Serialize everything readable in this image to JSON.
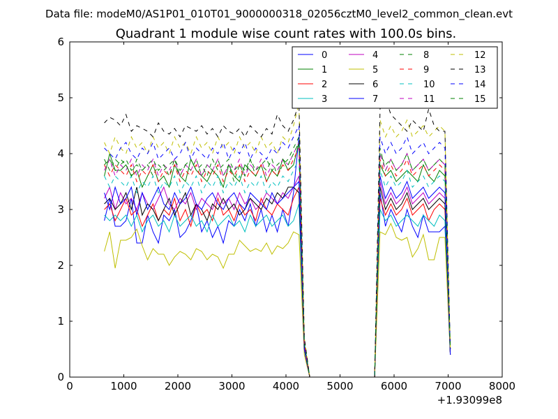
{
  "figure": {
    "suptitle": "Data file: modeM0/AS1P01_010T01_9000000318_02056cztM0_level2_common_clean.evt"
  },
  "chart_data": {
    "type": "line",
    "title": "Quadrant 1 module wise count rates with 100.0s bins.",
    "xlabel": "",
    "ylabel": "",
    "x_offset_label": "+1.93099e8",
    "xlim": [
      0,
      8000
    ],
    "ylim": [
      0,
      6
    ],
    "x_ticks": [
      0,
      1000,
      2000,
      3000,
      4000,
      5000,
      6000,
      7000,
      8000
    ],
    "y_ticks": [
      0,
      1,
      2,
      3,
      4,
      5,
      6
    ],
    "grid": false,
    "legend_position": "top-right",
    "legend_columns": 4,
    "x": [
      640,
      740,
      840,
      940,
      1040,
      1140,
      1240,
      1340,
      1440,
      1540,
      1640,
      1740,
      1840,
      1940,
      2040,
      2140,
      2240,
      2340,
      2440,
      2540,
      2640,
      2740,
      2840,
      2940,
      3040,
      3140,
      3240,
      3340,
      3440,
      3540,
      3640,
      3740,
      3840,
      3940,
      4040,
      4140,
      4240,
      4340,
      4440,
      4540,
      4640,
      4740,
      4840,
      4940,
      5040,
      5140,
      5240,
      5340,
      5440,
      5540,
      5640,
      5740,
      5840,
      5940,
      6040,
      6140,
      6240,
      6340,
      6440,
      6540,
      6640,
      6740,
      6840,
      6940,
      7040
    ],
    "series": [
      {
        "name": "0",
        "color": "#0000ff",
        "dash": "solid",
        "values": [
          2.8,
          3.2,
          2.7,
          2.7,
          2.8,
          3.2,
          2.4,
          2.4,
          2.9,
          2.6,
          2.4,
          2.9,
          2.8,
          3.0,
          2.5,
          2.6,
          2.8,
          3.1,
          2.6,
          2.8,
          2.5,
          2.7,
          2.4,
          2.8,
          2.7,
          3.0,
          2.8,
          3.1,
          2.7,
          3.0,
          2.6,
          2.9,
          2.6,
          3.0,
          2.7,
          3.3,
          4.3,
          0.6,
          0.0,
          0.0,
          0.0,
          0.0,
          0.0,
          0.0,
          0.0,
          0.0,
          0.0,
          0.0,
          0.0,
          0.0,
          0.0,
          3.3,
          2.7,
          3.0,
          2.8,
          2.6,
          3.0,
          2.7,
          2.5,
          2.9,
          2.6,
          2.6,
          2.6,
          2.7,
          0.4
        ]
      },
      {
        "name": "1",
        "color": "#008000",
        "dash": "solid",
        "values": [
          3.6,
          4.0,
          3.7,
          3.7,
          3.8,
          3.6,
          3.7,
          3.4,
          3.6,
          3.8,
          3.5,
          3.6,
          3.4,
          3.8,
          3.6,
          3.5,
          3.9,
          3.7,
          3.6,
          3.5,
          3.7,
          3.6,
          3.4,
          3.8,
          3.6,
          3.5,
          3.8,
          3.7,
          3.6,
          3.8,
          3.5,
          3.7,
          3.6,
          3.9,
          3.7,
          3.8,
          4.2,
          0.5,
          0.0,
          0.0,
          0.0,
          0.0,
          0.0,
          0.0,
          0.0,
          0.0,
          0.0,
          0.0,
          0.0,
          0.0,
          0.0,
          3.8,
          3.6,
          3.7,
          3.5,
          3.6,
          3.7,
          3.6,
          3.5,
          3.8,
          3.6,
          3.5,
          3.7,
          3.6,
          0.5
        ]
      },
      {
        "name": "2",
        "color": "#ff0000",
        "dash": "solid",
        "values": [
          3.0,
          3.1,
          2.8,
          3.0,
          3.2,
          2.9,
          3.0,
          2.7,
          2.9,
          3.1,
          2.8,
          3.0,
          2.9,
          3.2,
          2.8,
          3.0,
          2.7,
          3.1,
          2.9,
          3.0,
          2.8,
          3.2,
          2.9,
          3.0,
          2.8,
          3.1,
          2.9,
          3.0,
          2.8,
          3.2,
          3.0,
          2.9,
          3.1,
          3.0,
          2.9,
          3.2,
          3.4,
          0.5,
          0.0,
          0.0,
          0.0,
          0.0,
          0.0,
          0.0,
          0.0,
          0.0,
          0.0,
          0.0,
          0.0,
          0.0,
          0.0,
          3.2,
          2.9,
          3.1,
          2.9,
          3.0,
          3.2,
          2.9,
          3.0,
          3.1,
          2.8,
          3.0,
          3.1,
          3.0,
          0.4
        ]
      },
      {
        "name": "3",
        "color": "#00bfbf",
        "dash": "solid",
        "values": [
          2.9,
          2.8,
          2.9,
          2.8,
          2.9,
          2.7,
          2.9,
          2.6,
          2.8,
          2.9,
          2.7,
          2.8,
          2.6,
          2.9,
          2.7,
          2.8,
          2.9,
          2.7,
          2.8,
          2.6,
          2.9,
          2.7,
          2.8,
          2.9,
          2.7,
          2.8,
          2.6,
          2.9,
          2.7,
          2.8,
          2.9,
          2.7,
          2.8,
          2.9,
          2.7,
          2.8,
          3.1,
          0.5,
          0.0,
          0.0,
          0.0,
          0.0,
          0.0,
          0.0,
          0.0,
          0.0,
          0.0,
          0.0,
          0.0,
          0.0,
          0.0,
          3.0,
          2.8,
          2.9,
          2.7,
          2.8,
          2.9,
          2.8,
          2.7,
          2.9,
          2.8,
          2.7,
          2.9,
          2.8,
          0.4
        ]
      },
      {
        "name": "4",
        "color": "#bf00bf",
        "dash": "solid",
        "values": [
          3.2,
          3.4,
          3.0,
          3.3,
          3.1,
          3.2,
          3.0,
          3.3,
          3.1,
          3.0,
          3.2,
          3.4,
          3.1,
          3.0,
          3.2,
          3.1,
          3.3,
          3.0,
          3.2,
          3.1,
          3.0,
          3.3,
          3.1,
          3.2,
          3.0,
          3.3,
          3.1,
          3.2,
          3.0,
          3.1,
          3.3,
          3.2,
          3.1,
          3.3,
          3.2,
          3.4,
          3.6,
          0.5,
          0.0,
          0.0,
          0.0,
          0.0,
          0.0,
          0.0,
          0.0,
          0.0,
          0.0,
          0.0,
          0.0,
          0.0,
          0.0,
          3.5,
          3.1,
          3.3,
          3.1,
          3.2,
          3.4,
          3.1,
          3.2,
          3.3,
          3.1,
          3.2,
          3.3,
          3.2,
          0.4
        ]
      },
      {
        "name": "5",
        "color": "#bfbf00",
        "dash": "solid",
        "values": [
          2.25,
          2.6,
          1.95,
          2.45,
          2.45,
          2.5,
          2.65,
          2.35,
          2.1,
          2.3,
          2.2,
          2.2,
          2.0,
          2.15,
          2.25,
          2.2,
          2.1,
          2.3,
          2.25,
          2.1,
          2.2,
          2.15,
          1.95,
          2.2,
          2.2,
          2.45,
          2.35,
          2.25,
          2.3,
          2.25,
          2.4,
          2.2,
          2.35,
          2.3,
          2.4,
          2.6,
          2.55,
          0.4,
          0.0,
          0.0,
          0.0,
          0.0,
          0.0,
          0.0,
          0.0,
          0.0,
          0.0,
          0.0,
          0.0,
          0.0,
          0.0,
          2.6,
          2.55,
          2.75,
          2.5,
          2.45,
          2.5,
          2.15,
          2.3,
          2.55,
          2.1,
          2.1,
          2.5,
          2.5,
          0.4
        ]
      },
      {
        "name": "6",
        "color": "#000000",
        "dash": "solid",
        "values": [
          3.1,
          3.2,
          3.0,
          3.1,
          3.3,
          3.0,
          3.4,
          2.9,
          3.1,
          3.0,
          2.8,
          3.0,
          3.2,
          2.9,
          3.1,
          3.3,
          2.9,
          3.1,
          3.0,
          2.8,
          3.1,
          3.0,
          3.2,
          3.0,
          3.1,
          2.9,
          3.0,
          3.2,
          3.1,
          3.0,
          3.2,
          3.1,
          3.3,
          3.2,
          3.4,
          3.4,
          3.3,
          0.5,
          0.0,
          0.0,
          0.0,
          0.0,
          0.0,
          0.0,
          0.0,
          0.0,
          0.0,
          0.0,
          0.0,
          0.0,
          0.0,
          3.4,
          3.0,
          3.2,
          3.0,
          3.1,
          3.3,
          3.0,
          3.1,
          3.2,
          3.0,
          3.1,
          3.2,
          3.1,
          0.4
        ]
      },
      {
        "name": "7",
        "color": "#0000ff",
        "dash": "solid",
        "values": [
          3.3,
          3.0,
          3.4,
          3.1,
          3.2,
          3.4,
          2.9,
          3.3,
          3.0,
          3.2,
          3.4,
          3.1,
          3.0,
          3.3,
          3.1,
          3.2,
          3.4,
          3.1,
          3.0,
          3.2,
          3.3,
          3.1,
          3.0,
          3.2,
          3.3,
          3.1,
          3.0,
          3.3,
          3.2,
          3.1,
          3.0,
          3.3,
          3.1,
          3.2,
          3.3,
          3.4,
          3.5,
          0.5,
          0.0,
          0.0,
          0.0,
          0.0,
          0.0,
          0.0,
          0.0,
          0.0,
          0.0,
          0.0,
          0.0,
          0.0,
          0.0,
          3.6,
          3.2,
          3.4,
          3.2,
          3.3,
          3.5,
          3.2,
          3.3,
          3.4,
          3.2,
          3.3,
          3.4,
          3.3,
          0.4
        ]
      },
      {
        "name": "8",
        "color": "#008000",
        "dash": "dashed",
        "values": [
          3.9,
          3.7,
          3.9,
          3.8,
          3.9,
          3.7,
          3.8,
          3.7,
          3.8,
          3.6,
          3.8,
          3.7,
          3.8,
          3.9,
          3.6,
          3.8,
          3.7,
          3.9,
          3.6,
          3.8,
          3.7,
          3.9,
          3.6,
          3.8,
          3.5,
          3.8,
          3.7,
          3.9,
          3.6,
          3.8,
          3.7,
          3.9,
          3.6,
          3.8,
          3.9,
          4.1,
          4.3,
          0.6,
          0.0,
          0.0,
          0.0,
          0.0,
          0.0,
          0.0,
          0.0,
          0.0,
          0.0,
          0.0,
          0.0,
          0.0,
          0.0,
          4.1,
          3.7,
          3.9,
          3.7,
          3.8,
          4.0,
          3.7,
          3.8,
          3.9,
          3.7,
          3.8,
          3.9,
          3.8,
          0.5
        ]
      },
      {
        "name": "9",
        "color": "#ff0000",
        "dash": "dashed",
        "values": [
          3.8,
          3.6,
          3.8,
          3.7,
          3.6,
          3.8,
          3.5,
          3.7,
          3.6,
          3.8,
          3.5,
          3.7,
          3.6,
          3.8,
          3.5,
          3.7,
          3.6,
          3.8,
          3.5,
          3.7,
          3.6,
          3.8,
          3.5,
          3.7,
          3.6,
          3.8,
          3.5,
          3.7,
          3.6,
          3.8,
          3.5,
          3.7,
          3.6,
          3.8,
          3.7,
          3.9,
          4.1,
          0.6,
          0.0,
          0.0,
          0.0,
          0.0,
          0.0,
          0.0,
          0.0,
          0.0,
          0.0,
          0.0,
          0.0,
          0.0,
          0.0,
          3.9,
          3.6,
          3.8,
          3.6,
          3.7,
          3.9,
          3.6,
          3.7,
          3.8,
          3.6,
          3.7,
          3.8,
          3.7,
          0.5
        ]
      },
      {
        "name": "10",
        "color": "#00bfbf",
        "dash": "dashed",
        "values": [
          3.6,
          3.4,
          3.6,
          3.5,
          3.4,
          3.6,
          3.3,
          3.5,
          3.4,
          3.6,
          3.3,
          3.5,
          3.4,
          3.6,
          3.3,
          3.5,
          3.4,
          3.6,
          3.3,
          3.5,
          3.4,
          3.6,
          3.3,
          3.5,
          3.4,
          3.6,
          3.3,
          3.5,
          3.4,
          3.6,
          3.3,
          3.5,
          3.4,
          3.6,
          3.5,
          3.7,
          3.9,
          0.6,
          0.0,
          0.0,
          0.0,
          0.0,
          0.0,
          0.0,
          0.0,
          0.0,
          0.0,
          0.0,
          0.0,
          0.0,
          0.0,
          3.7,
          3.4,
          3.6,
          3.4,
          3.5,
          3.7,
          3.4,
          3.5,
          3.6,
          3.4,
          3.5,
          3.6,
          3.5,
          0.5
        ]
      },
      {
        "name": "11",
        "color": "#bf00bf",
        "dash": "dashed",
        "values": [
          3.7,
          3.9,
          3.6,
          3.8,
          3.7,
          3.9,
          3.6,
          3.8,
          3.7,
          3.9,
          3.6,
          3.8,
          3.7,
          3.9,
          3.6,
          3.8,
          3.7,
          3.9,
          3.6,
          3.8,
          3.7,
          3.9,
          3.6,
          3.8,
          3.7,
          3.9,
          3.6,
          3.8,
          3.7,
          3.9,
          3.6,
          3.8,
          3.7,
          3.9,
          3.8,
          4.0,
          4.2,
          0.6,
          0.0,
          0.0,
          0.0,
          0.0,
          0.0,
          0.0,
          0.0,
          0.0,
          0.0,
          0.0,
          0.0,
          0.0,
          0.0,
          4.0,
          3.7,
          3.9,
          3.7,
          3.8,
          4.0,
          3.7,
          3.8,
          3.9,
          3.7,
          3.8,
          3.9,
          3.8,
          0.5
        ]
      },
      {
        "name": "12",
        "color": "#bfbf00",
        "dash": "dashed",
        "values": [
          4.2,
          4.0,
          4.3,
          4.1,
          4.0,
          4.3,
          4.1,
          4.2,
          4.0,
          4.3,
          4.1,
          4.2,
          4.0,
          4.3,
          4.1,
          4.2,
          4.0,
          4.3,
          4.1,
          4.2,
          4.0,
          4.3,
          4.1,
          4.2,
          4.0,
          4.3,
          4.1,
          4.2,
          4.0,
          4.3,
          4.1,
          4.2,
          4.0,
          4.3,
          4.2,
          4.5,
          4.9,
          0.7,
          0.0,
          0.0,
          0.0,
          0.0,
          0.0,
          0.0,
          0.0,
          0.0,
          0.0,
          0.0,
          0.0,
          0.0,
          0.0,
          4.6,
          4.3,
          4.5,
          4.3,
          4.4,
          4.6,
          4.3,
          4.4,
          4.5,
          4.3,
          4.4,
          4.5,
          4.4,
          0.5
        ]
      },
      {
        "name": "13",
        "color": "#000000",
        "dash": "dashed",
        "values": [
          4.55,
          4.65,
          4.6,
          4.5,
          4.7,
          4.4,
          4.5,
          4.45,
          4.4,
          4.3,
          4.55,
          4.4,
          4.35,
          4.45,
          4.3,
          4.5,
          4.45,
          4.4,
          4.5,
          4.35,
          4.45,
          4.3,
          4.5,
          4.4,
          4.35,
          4.45,
          4.3,
          4.5,
          4.4,
          4.3,
          4.45,
          4.35,
          4.7,
          4.5,
          4.4,
          4.6,
          4.9,
          0.7,
          0.0,
          0.0,
          0.0,
          0.0,
          0.0,
          0.0,
          0.0,
          0.0,
          0.0,
          0.0,
          0.0,
          0.0,
          0.0,
          4.8,
          5.0,
          4.7,
          4.6,
          4.5,
          4.4,
          4.6,
          4.5,
          4.4,
          4.8,
          4.5,
          4.4,
          4.4,
          0.5
        ]
      },
      {
        "name": "14",
        "color": "#0000ff",
        "dash": "dashed",
        "values": [
          4.1,
          4.0,
          3.9,
          4.1,
          4.2,
          4.0,
          3.9,
          4.1,
          4.0,
          4.2,
          3.9,
          4.0,
          4.1,
          3.9,
          4.0,
          4.2,
          3.9,
          4.1,
          4.0,
          3.9,
          4.1,
          4.0,
          4.2,
          3.9,
          4.1,
          4.0,
          4.2,
          3.9,
          4.1,
          4.0,
          3.9,
          4.1,
          4.0,
          4.2,
          4.1,
          4.3,
          4.5,
          0.6,
          0.0,
          0.0,
          0.0,
          0.0,
          0.0,
          0.0,
          0.0,
          0.0,
          0.0,
          0.0,
          0.0,
          0.0,
          0.0,
          4.3,
          4.0,
          4.2,
          4.0,
          4.1,
          4.3,
          4.0,
          4.1,
          4.2,
          4.0,
          4.1,
          4.2,
          4.1,
          0.5
        ]
      },
      {
        "name": "15",
        "color": "#008000",
        "dash": "dashed",
        "values": [
          3.8,
          3.9,
          3.7,
          3.9,
          3.8,
          3.6,
          3.9,
          3.7,
          3.8,
          3.9,
          3.7,
          3.8,
          3.6,
          3.9,
          3.7,
          3.8,
          3.9,
          3.7,
          3.8,
          3.6,
          3.9,
          3.7,
          3.8,
          3.9,
          3.7,
          3.8,
          3.6,
          3.9,
          3.7,
          3.8,
          3.9,
          3.7,
          3.8,
          3.9,
          3.8,
          4.0,
          4.2,
          0.6,
          0.0,
          0.0,
          0.0,
          0.0,
          0.0,
          0.0,
          0.0,
          0.0,
          0.0,
          0.0,
          0.0,
          0.0,
          0.0,
          4.0,
          3.8,
          3.9,
          3.7,
          3.8,
          4.0,
          3.7,
          3.8,
          3.9,
          3.7,
          3.8,
          3.9,
          3.8,
          0.5
        ]
      }
    ]
  }
}
